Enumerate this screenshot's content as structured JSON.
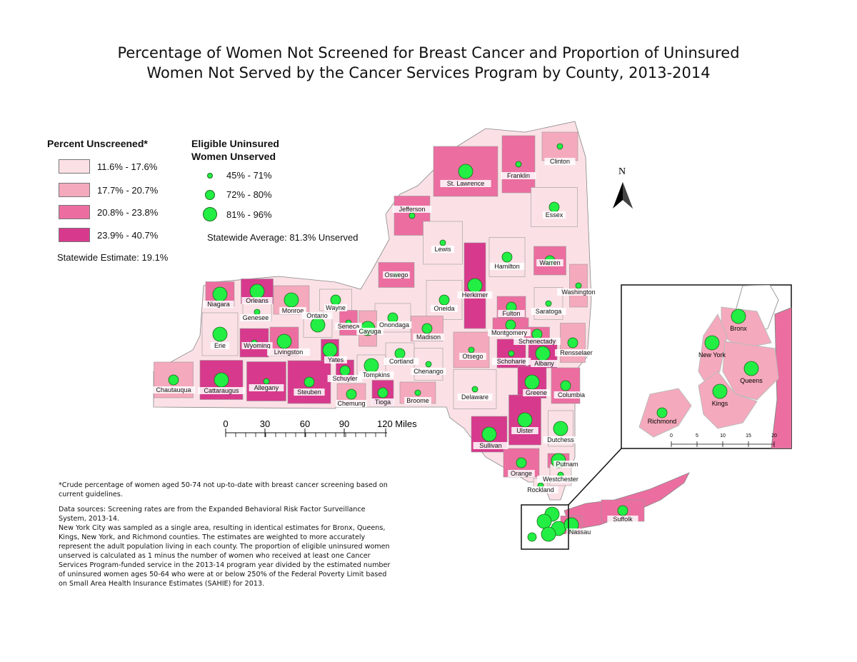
{
  "title": {
    "line1": "Percentage of Women Not Screened for Breast Cancer and Proportion of Uninsured",
    "line2": "Women Not Served by the Cancer Services Program by County, 2013-2014"
  },
  "legend_unscreened": {
    "title": "Percent Unscreened*",
    "classes": [
      {
        "label": "11.6% - 17.6%",
        "color": "#fbe1e6"
      },
      {
        "label": "17.7% - 20.7%",
        "color": "#f5a9bd"
      },
      {
        "label": "20.8% - 23.8%",
        "color": "#ec6ea0"
      },
      {
        "label": "23.9% - 40.7%",
        "color": "#d73a8c"
      }
    ],
    "statewide": "Statewide Estimate: 19.1%"
  },
  "legend_unserved": {
    "title_line1": "Eligible Uninsured",
    "title_line2": "Women Unserved",
    "classes": [
      {
        "label": "45% - 71%"
      },
      {
        "label": "72% - 80%"
      },
      {
        "label": "81% - 96%"
      }
    ],
    "statewide": "Statewide Average: 81.3% Unserved",
    "dot_color": "#22ee44"
  },
  "north_label": "N",
  "scale_bar": {
    "ticks": [
      "0",
      "30",
      "60",
      "90",
      "120 Miles"
    ]
  },
  "inset_scale": {
    "ticks": [
      "0",
      "5",
      "10",
      "15",
      "20"
    ]
  },
  "counties": [
    {
      "name": "Clinton",
      "class": 2,
      "dot": 1
    },
    {
      "name": "Franklin",
      "class": 3,
      "dot": 1
    },
    {
      "name": "St. Lawrence",
      "class": 3,
      "dot": 3
    },
    {
      "name": "Essex",
      "class": 1,
      "dot": 2
    },
    {
      "name": "Jefferson",
      "class": 3,
      "dot": 1
    },
    {
      "name": "Lewis",
      "class": 1,
      "dot": 1
    },
    {
      "name": "Hamilton",
      "class": 1,
      "dot": 2
    },
    {
      "name": "Warren",
      "class": 3,
      "dot": 2
    },
    {
      "name": "Washington",
      "class": 2,
      "dot": 1
    },
    {
      "name": "Herkimer",
      "class": 4,
      "dot": 3
    },
    {
      "name": "Oswego",
      "class": 3,
      "dot": 1
    },
    {
      "name": "Oneida",
      "class": 1,
      "dot": 2
    },
    {
      "name": "Fulton",
      "class": 3,
      "dot": 2
    },
    {
      "name": "Saratoga",
      "class": 1,
      "dot": 1
    },
    {
      "name": "Niagara",
      "class": 3,
      "dot": 3
    },
    {
      "name": "Orleans",
      "class": 4,
      "dot": 3
    },
    {
      "name": "Genesee",
      "class": 1,
      "dot": 1
    },
    {
      "name": "Monroe",
      "class": 2,
      "dot": 3
    },
    {
      "name": "Wayne",
      "class": 1,
      "dot": 2
    },
    {
      "name": "Ontario",
      "class": 1,
      "dot": 3
    },
    {
      "name": "Onondaga",
      "class": 1,
      "dot": 2
    },
    {
      "name": "Madison",
      "class": 2,
      "dot": 2
    },
    {
      "name": "Montgomery",
      "class": 3,
      "dot": 2
    },
    {
      "name": "Schenectady",
      "class": 3,
      "dot": 2
    },
    {
      "name": "Rensselaer",
      "class": 2,
      "dot": 2
    },
    {
      "name": "Erie",
      "class": 1,
      "dot": 3
    },
    {
      "name": "Wyoming",
      "class": 4,
      "dot": 1
    },
    {
      "name": "Livingston",
      "class": 3,
      "dot": 3
    },
    {
      "name": "Seneca",
      "class": 3,
      "dot": 1
    },
    {
      "name": "Cayuga",
      "class": 2,
      "dot": 3
    },
    {
      "name": "Yates",
      "class": 4,
      "dot": 3
    },
    {
      "name": "Cortland",
      "class": 1,
      "dot": 2
    },
    {
      "name": "Chenango",
      "class": 1,
      "dot": 1
    },
    {
      "name": "Otsego",
      "class": 2,
      "dot": 1
    },
    {
      "name": "Schoharie",
      "class": 4,
      "dot": 1
    },
    {
      "name": "Albany",
      "class": 4,
      "dot": 3
    },
    {
      "name": "Chautauqua",
      "class": 2,
      "dot": 2
    },
    {
      "name": "Cattaraugus",
      "class": 4,
      "dot": 3
    },
    {
      "name": "Allegany",
      "class": 4,
      "dot": 1
    },
    {
      "name": "Steuben",
      "class": 4,
      "dot": 2
    },
    {
      "name": "Schuyler",
      "class": 4,
      "dot": 2
    },
    {
      "name": "Tompkins",
      "class": 1,
      "dot": 3
    },
    {
      "name": "Chemung",
      "class": 2,
      "dot": 2
    },
    {
      "name": "Tioga",
      "class": 4,
      "dot": 2
    },
    {
      "name": "Broome",
      "class": 2,
      "dot": 1
    },
    {
      "name": "Delaware",
      "class": 1,
      "dot": 1
    },
    {
      "name": "Greene",
      "class": 4,
      "dot": 3
    },
    {
      "name": "Columbia",
      "class": 3,
      "dot": 2
    },
    {
      "name": "Ulster",
      "class": 4,
      "dot": 3
    },
    {
      "name": "Sullivan",
      "class": 4,
      "dot": 3
    },
    {
      "name": "Dutchess",
      "class": 1,
      "dot": 3
    },
    {
      "name": "Putnam",
      "class": 3,
      "dot": 3
    },
    {
      "name": "Orange",
      "class": 3,
      "dot": 2
    },
    {
      "name": "Westchester",
      "class": 1,
      "dot": 1
    },
    {
      "name": "Rockland",
      "class": 1,
      "dot": 1
    },
    {
      "name": "Nassau",
      "class": 3,
      "dot": 3
    },
    {
      "name": "Suffolk",
      "class": 3,
      "dot": 2
    }
  ],
  "inset_counties": [
    {
      "name": "Bronx",
      "class": 2,
      "dot": 3
    },
    {
      "name": "New York",
      "class": 2,
      "dot": 3
    },
    {
      "name": "Queens",
      "class": 2,
      "dot": 3
    },
    {
      "name": "Kings",
      "class": 2,
      "dot": 3
    },
    {
      "name": "Richmond",
      "class": 2,
      "dot": 2
    }
  ],
  "footnote": "*Crude percentage of women aged 50-74 not up-to-date with breast cancer screening based on current guidelines.",
  "sources": "Data sources: Screening rates are from the Expanded Behavioral Risk Factor Surveillance System, 2013-14.",
  "method": "New York City was sampled as a single area, resulting in identical estimates for Bronx, Queens, Kings, New York, and Richmond counties. The estimates are weighted to more accurately represent the adult population living in each county. The proportion of eligible uninsured women unserved is calculated as 1 minus the number of women who received at least one Cancer Services Program-funded service in the 2013-14 program year divided by the estimated number of uninsured women ages 50-64 who were at or below 250% of the Federal Poverty Limit based on Small Area Health Insurance Estimates (SAHIE) for 2013."
}
